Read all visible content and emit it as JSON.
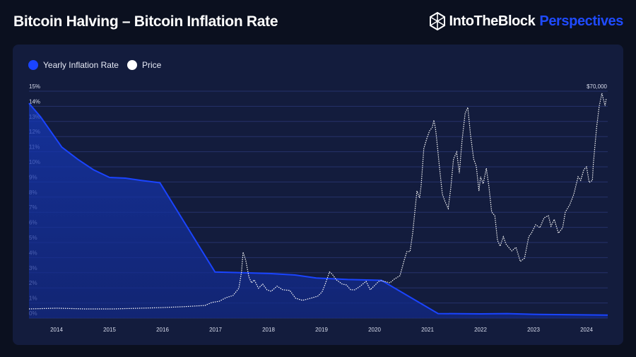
{
  "header": {
    "title": "Bitcoin Halving – Bitcoin Inflation Rate",
    "brand": "IntoTheBlock",
    "brand_suffix": "Perspectives"
  },
  "colors": {
    "inflation": "#1a44ff",
    "price": "#ffffff",
    "background": "#0b101f",
    "panel": "#131c3d"
  },
  "chart_data": {
    "type": "line",
    "title": "Bitcoin Halving – Bitcoin Inflation Rate",
    "legend": {
      "placement": "top-left",
      "entries": [
        "Yearly Inflation Rate",
        "Price"
      ]
    },
    "x_range": [
      2013.48,
      2024.4
    ],
    "x_ticks": [
      "2014",
      "2015",
      "2016",
      "2017",
      "2018",
      "2019",
      "2020",
      "2021",
      "2022",
      "2023",
      "2024"
    ],
    "y_left": {
      "ylim": [
        0,
        15
      ],
      "ticks": [
        "0%",
        "1%",
        "2%",
        "3%",
        "4%",
        "5%",
        "6%",
        "7%",
        "8%",
        "9%",
        "10%",
        "11%",
        "12%",
        "13%",
        "14%",
        "15%"
      ]
    },
    "y_right": {
      "ylim": [
        -2300,
        73000
      ],
      "label": "$70,000"
    },
    "grid": true,
    "series": [
      {
        "name": "Yearly Inflation Rate",
        "axis": "left",
        "style": "solid-area",
        "points": [
          [
            2013.48,
            14.2
          ],
          [
            2013.7,
            13.3
          ],
          [
            2013.9,
            12.3
          ],
          [
            2014.1,
            11.3
          ],
          [
            2014.4,
            10.5
          ],
          [
            2014.7,
            9.8
          ],
          [
            2015.0,
            9.3
          ],
          [
            2015.3,
            9.25
          ],
          [
            2015.6,
            9.1
          ],
          [
            2015.95,
            8.95
          ],
          [
            2016.99,
            3.05
          ],
          [
            2017.5,
            3.0
          ],
          [
            2018.0,
            2.95
          ],
          [
            2018.5,
            2.85
          ],
          [
            2018.9,
            2.65
          ],
          [
            2019.5,
            2.55
          ],
          [
            2020.13,
            2.5
          ],
          [
            2021.2,
            0.3
          ],
          [
            2022.0,
            0.28
          ],
          [
            2022.5,
            0.3
          ],
          [
            2023.0,
            0.25
          ],
          [
            2024.4,
            0.2
          ]
        ]
      },
      {
        "name": "Price",
        "axis": "right",
        "style": "dotted",
        "points": [
          [
            2013.48,
            750
          ],
          [
            2014.0,
            1000
          ],
          [
            2014.53,
            750
          ],
          [
            2015.07,
            750
          ],
          [
            2015.6,
            1000
          ],
          [
            2016.0,
            1200
          ],
          [
            2016.4,
            1500
          ],
          [
            2016.8,
            1900
          ],
          [
            2016.93,
            2900
          ],
          [
            2017.07,
            3300
          ],
          [
            2017.2,
            4500
          ],
          [
            2017.33,
            5200
          ],
          [
            2017.44,
            7600
          ],
          [
            2017.49,
            13000
          ],
          [
            2017.52,
            19600
          ],
          [
            2017.57,
            16900
          ],
          [
            2017.63,
            11300
          ],
          [
            2017.68,
            9400
          ],
          [
            2017.73,
            10400
          ],
          [
            2017.81,
            7600
          ],
          [
            2017.89,
            9000
          ],
          [
            2017.97,
            7100
          ],
          [
            2018.05,
            6600
          ],
          [
            2018.16,
            8300
          ],
          [
            2018.27,
            7100
          ],
          [
            2018.4,
            6900
          ],
          [
            2018.51,
            4300
          ],
          [
            2018.64,
            3600
          ],
          [
            2018.8,
            4300
          ],
          [
            2018.93,
            5000
          ],
          [
            2019.01,
            6400
          ],
          [
            2019.07,
            9000
          ],
          [
            2019.15,
            13000
          ],
          [
            2019.2,
            12300
          ],
          [
            2019.28,
            10400
          ],
          [
            2019.39,
            9000
          ],
          [
            2019.47,
            8700
          ],
          [
            2019.55,
            7100
          ],
          [
            2019.63,
            7100
          ],
          [
            2019.73,
            8300
          ],
          [
            2019.84,
            9900
          ],
          [
            2019.92,
            7100
          ],
          [
            2020.0,
            8500
          ],
          [
            2020.08,
            9900
          ],
          [
            2020.13,
            10100
          ],
          [
            2020.29,
            9400
          ],
          [
            2020.37,
            10600
          ],
          [
            2020.48,
            11800
          ],
          [
            2020.56,
            16900
          ],
          [
            2020.61,
            19800
          ],
          [
            2020.67,
            19800
          ],
          [
            2020.72,
            25900
          ],
          [
            2020.8,
            39900
          ],
          [
            2020.85,
            37600
          ],
          [
            2020.88,
            41800
          ],
          [
            2020.93,
            54000
          ],
          [
            2020.99,
            57500
          ],
          [
            2021.04,
            59900
          ],
          [
            2021.09,
            61000
          ],
          [
            2021.12,
            63400
          ],
          [
            2021.15,
            60600
          ],
          [
            2021.17,
            57500
          ],
          [
            2021.23,
            47000
          ],
          [
            2021.28,
            38800
          ],
          [
            2021.33,
            36400
          ],
          [
            2021.39,
            34100
          ],
          [
            2021.44,
            41100
          ],
          [
            2021.49,
            50500
          ],
          [
            2021.55,
            52800
          ],
          [
            2021.6,
            45800
          ],
          [
            2021.65,
            56400
          ],
          [
            2021.71,
            65700
          ],
          [
            2021.76,
            67600
          ],
          [
            2021.81,
            58700
          ],
          [
            2021.87,
            50500
          ],
          [
            2021.92,
            48100
          ],
          [
            2021.97,
            39900
          ],
          [
            2022.0,
            44600
          ],
          [
            2022.05,
            42300
          ],
          [
            2022.11,
            47400
          ],
          [
            2022.16,
            41100
          ],
          [
            2022.21,
            32900
          ],
          [
            2022.27,
            31700
          ],
          [
            2022.32,
            23500
          ],
          [
            2022.37,
            21600
          ],
          [
            2022.43,
            24700
          ],
          [
            2022.48,
            22300
          ],
          [
            2022.53,
            21200
          ],
          [
            2022.59,
            20000
          ],
          [
            2022.67,
            21200
          ],
          [
            2022.75,
            16500
          ],
          [
            2022.83,
            17600
          ],
          [
            2022.91,
            24700
          ],
          [
            2022.96,
            25900
          ],
          [
            2023.04,
            28700
          ],
          [
            2023.12,
            27700
          ],
          [
            2023.2,
            31000
          ],
          [
            2023.28,
            31700
          ],
          [
            2023.33,
            28200
          ],
          [
            2023.39,
            30500
          ],
          [
            2023.47,
            25900
          ],
          [
            2023.55,
            27700
          ],
          [
            2023.6,
            32900
          ],
          [
            2023.68,
            35200
          ],
          [
            2023.76,
            38800
          ],
          [
            2023.84,
            44600
          ],
          [
            2023.89,
            43400
          ],
          [
            2023.95,
            47000
          ],
          [
            2024.0,
            47900
          ],
          [
            2024.05,
            42700
          ],
          [
            2024.11,
            43400
          ],
          [
            2024.13,
            49300
          ],
          [
            2024.19,
            61000
          ],
          [
            2024.24,
            68100
          ],
          [
            2024.29,
            72300
          ],
          [
            2024.35,
            68100
          ],
          [
            2024.37,
            70400
          ]
        ]
      }
    ]
  }
}
